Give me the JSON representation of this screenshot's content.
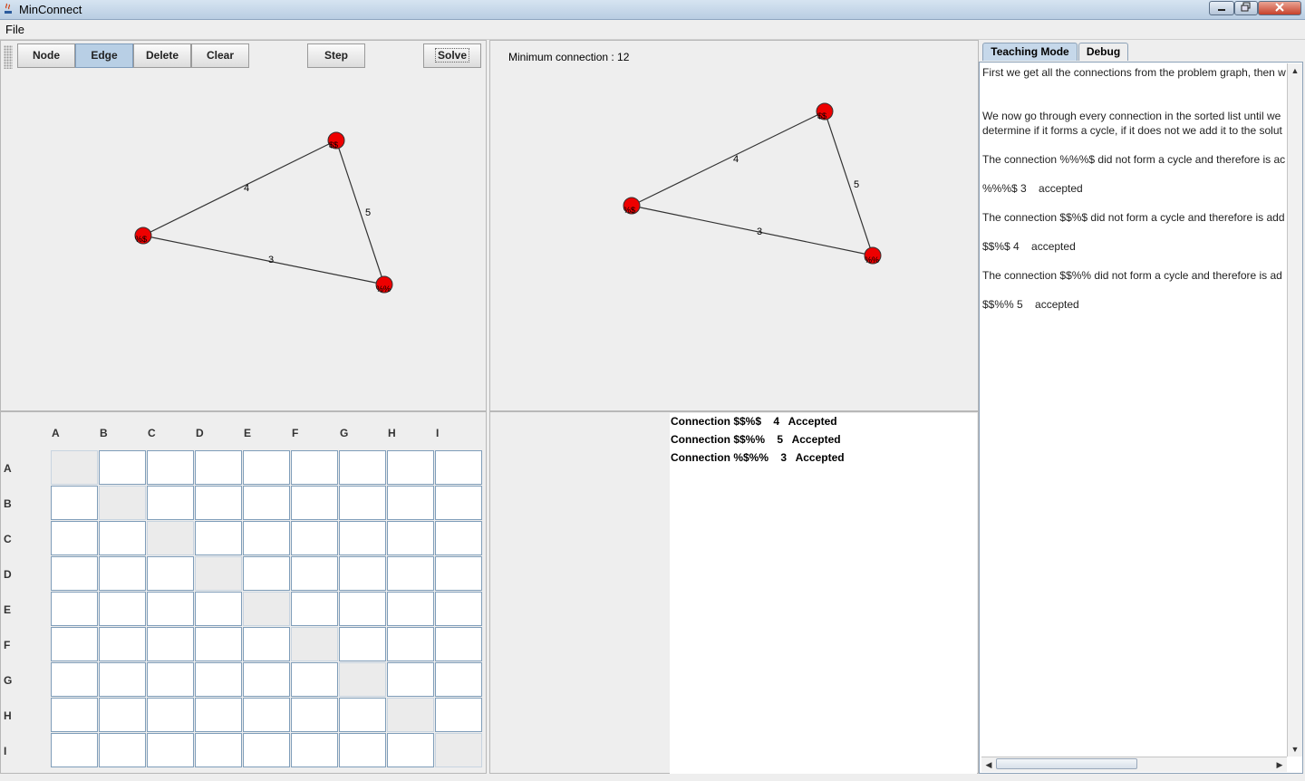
{
  "window": {
    "title": "MinConnect"
  },
  "menu": {
    "file": "File"
  },
  "toolbar": {
    "node": "Node",
    "edge": "Edge",
    "delete": "Delete",
    "clear": "Clear",
    "step": "Step",
    "solve": "Solve",
    "active": "Edge"
  },
  "solution_graph": {
    "label": "Minimum connection : 12"
  },
  "input_graph_edges": {
    "e1": "4",
    "e2": "5",
    "e3": "3"
  },
  "solution_graph_edges": {
    "e1": "4",
    "e2": "5",
    "e3": "3"
  },
  "node_labels": {
    "a": "$$",
    "b": "%$",
    "c": "%%"
  },
  "matrix": {
    "columns": [
      "A",
      "B",
      "C",
      "D",
      "E",
      "F",
      "G",
      "H",
      "I"
    ],
    "rows": [
      "A",
      "B",
      "C",
      "D",
      "E",
      "F",
      "G",
      "H",
      "I"
    ]
  },
  "results": [
    "Connection $$%$    4   Accepted",
    "Connection $$%%    5   Accepted",
    "Connection %$%%    3   Accepted"
  ],
  "tabs": {
    "teaching": "Teaching Mode",
    "debug": "Debug"
  },
  "teaching_text": [
    "First we get all the connections from the problem graph, then w",
    "We now go through every connection in the sorted list until we",
    "determine if it forms a cycle, if it does not we add it to the solut",
    "The connection %%%$ did not form a cycle and therefore is ac",
    "%%%$ 3    accepted",
    "The connection $$%$ did not form a cycle and therefore is add",
    "$$%$ 4    accepted",
    "The connection $$%% did not form a cycle and therefore is ad",
    "$$%% 5    accepted"
  ],
  "colors": {
    "node_fill": "#ee0000",
    "accent": "#b8cfe5"
  }
}
